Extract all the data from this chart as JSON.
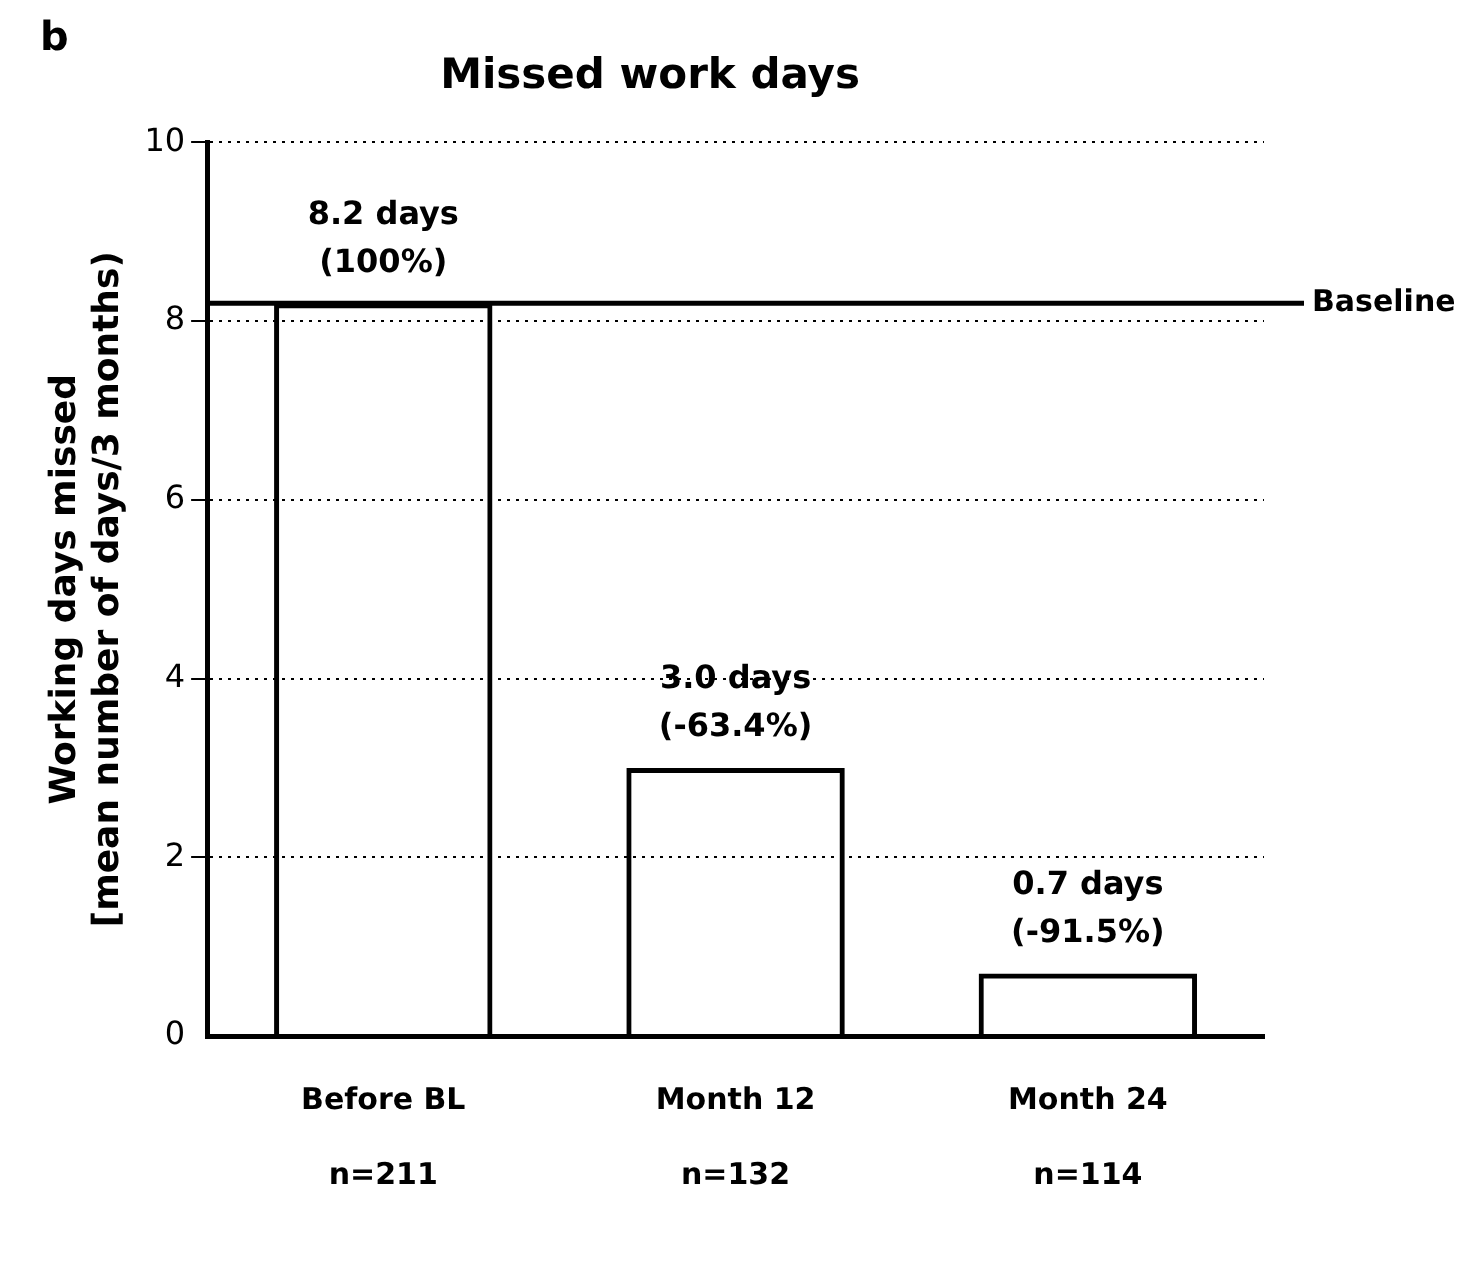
{
  "chart_data": {
    "type": "bar",
    "title": "Missed work days",
    "ylabel": "Working days missed\n[mean number of days/3 months)",
    "categories": [
      "Before BL\nn=211",
      "Month 12\nn=132",
      "Month 24\nn=114"
    ],
    "values": [
      8.2,
      3.0,
      0.7
    ],
    "color": "#000000",
    "value_labels": [
      "8.2 days\n(100%)",
      "3.0 days\n(-63.4%)",
      "0.7 days\n(-91.5%)"
    ],
    "ylim": [
      0,
      10
    ],
    "yticks": [
      0,
      2,
      4,
      6,
      8,
      10
    ],
    "grid": "y",
    "legend": false,
    "ref_lines": [
      {
        "axis": "y",
        "value": 8.2,
        "label": "Baseline",
        "color": "#000000",
        "line_style": "solid"
      }
    ],
    "annotations": [
      "b"
    ]
  }
}
